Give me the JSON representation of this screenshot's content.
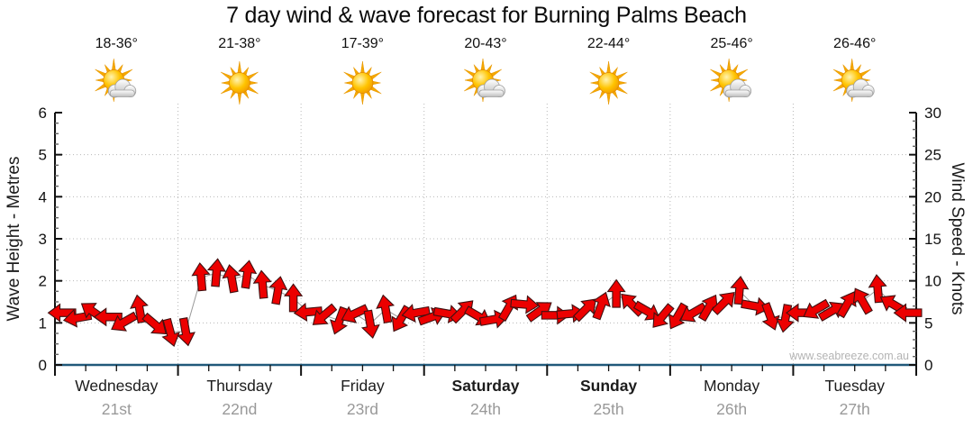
{
  "title": "7 day wind & wave forecast for Burning Palms Beach",
  "watermark": "www.seabreeze.com.au",
  "axes": {
    "left_label": "Wave Height - Metres",
    "right_label": "Wind Speed - Knots",
    "left_ticks": [
      "0",
      "1",
      "2",
      "3",
      "4",
      "5",
      "6"
    ],
    "right_ticks": [
      "0",
      "5",
      "10",
      "15",
      "20",
      "25",
      "30"
    ],
    "left_range": [
      0,
      6
    ],
    "right_range": [
      0,
      30
    ]
  },
  "days": [
    {
      "name": "Wednesday",
      "date": "21st",
      "temp": "18-36°",
      "icon": "sun-cloud-icon",
      "weekend": false
    },
    {
      "name": "Thursday",
      "date": "22nd",
      "temp": "21-38°",
      "icon": "sun-icon",
      "weekend": false
    },
    {
      "name": "Friday",
      "date": "23rd",
      "temp": "17-39°",
      "icon": "sun-icon",
      "weekend": false
    },
    {
      "name": "Saturday",
      "date": "24th",
      "temp": "20-43°",
      "icon": "sun-cloud-icon",
      "weekend": true
    },
    {
      "name": "Sunday",
      "date": "25th",
      "temp": "22-44°",
      "icon": "sun-icon",
      "weekend": true
    },
    {
      "name": "Monday",
      "date": "26th",
      "temp": "25-46°",
      "icon": "sun-cloud-icon",
      "weekend": false
    },
    {
      "name": "Tuesday",
      "date": "27th",
      "temp": "26-46°",
      "icon": "sun-cloud-icon",
      "weekend": false
    }
  ],
  "chart_data": {
    "type": "scatter",
    "subtype": "wind-direction-arrows",
    "title": "7 day wind & wave forecast for Burning Palms Beach",
    "x_unit": "3-hourly steps, 8 per day, 7 days (Wed 21st - Tue 27th)",
    "ylabel_left": "Wave Height - Metres",
    "ylabel_right": "Wind Speed - Knots",
    "ylim_left": [
      0,
      6
    ],
    "ylim_right": [
      0,
      30
    ],
    "grid": "dotted, horizontal each metre (5 knots), vertical each day boundary",
    "scale_note": "shared grid: 1 metre on left axis aligns with 5 knots on right axis",
    "wind_knots": [
      6.2,
      5.6,
      6.3,
      5.7,
      5.1,
      6.6,
      4.8,
      3.9,
      4.0,
      10.4,
      10.9,
      10.2,
      10.7,
      9.5,
      8.8,
      7.9,
      6.3,
      5.9,
      5.3,
      6.1,
      4.9,
      6.6,
      5.5,
      6.2,
      5.7,
      6.1,
      6.4,
      5.8,
      5.4,
      6.8,
      7.2,
      6.4,
      5.9,
      6.1,
      6.6,
      7.0,
      8.4,
      7.2,
      6.4,
      5.8,
      5.8,
      6.2,
      6.8,
      7.4,
      8.8,
      7.0,
      5.8,
      5.6,
      6.2,
      6.6,
      6.4,
      7.2,
      7.6,
      9.0,
      7.2,
      6.2
    ],
    "arrow_dir_deg_clockwise_from_up": [
      -90,
      -100,
      -55,
      -90,
      -120,
      -10,
      130,
      165,
      170,
      -5,
      5,
      -10,
      8,
      -5,
      10,
      0,
      -95,
      -130,
      -160,
      -115,
      170,
      -10,
      -150,
      -100,
      70,
      100,
      45,
      120,
      80,
      30,
      95,
      55,
      90,
      85,
      45,
      20,
      0,
      -45,
      120,
      -140,
      -150,
      -120,
      30,
      45,
      5,
      100,
      160,
      -170,
      -90,
      -120,
      60,
      30,
      -30,
      -5,
      -60,
      -90
    ]
  },
  "colors": {
    "arrow_fill": "#ec0000",
    "arrow_stroke": "#401010",
    "x_axis_line": "#20597a",
    "y_axis_line": "#111111",
    "grid_line": "#b8b8b8",
    "tick_minor": "#666666",
    "day_text": "#1c1c1c",
    "date_text": "#999999",
    "watermark_text": "#b4b4b4",
    "sun_core": "#ffb400",
    "sun_ray": "#f5a800",
    "cloud_fill": "#d9d9d9"
  }
}
